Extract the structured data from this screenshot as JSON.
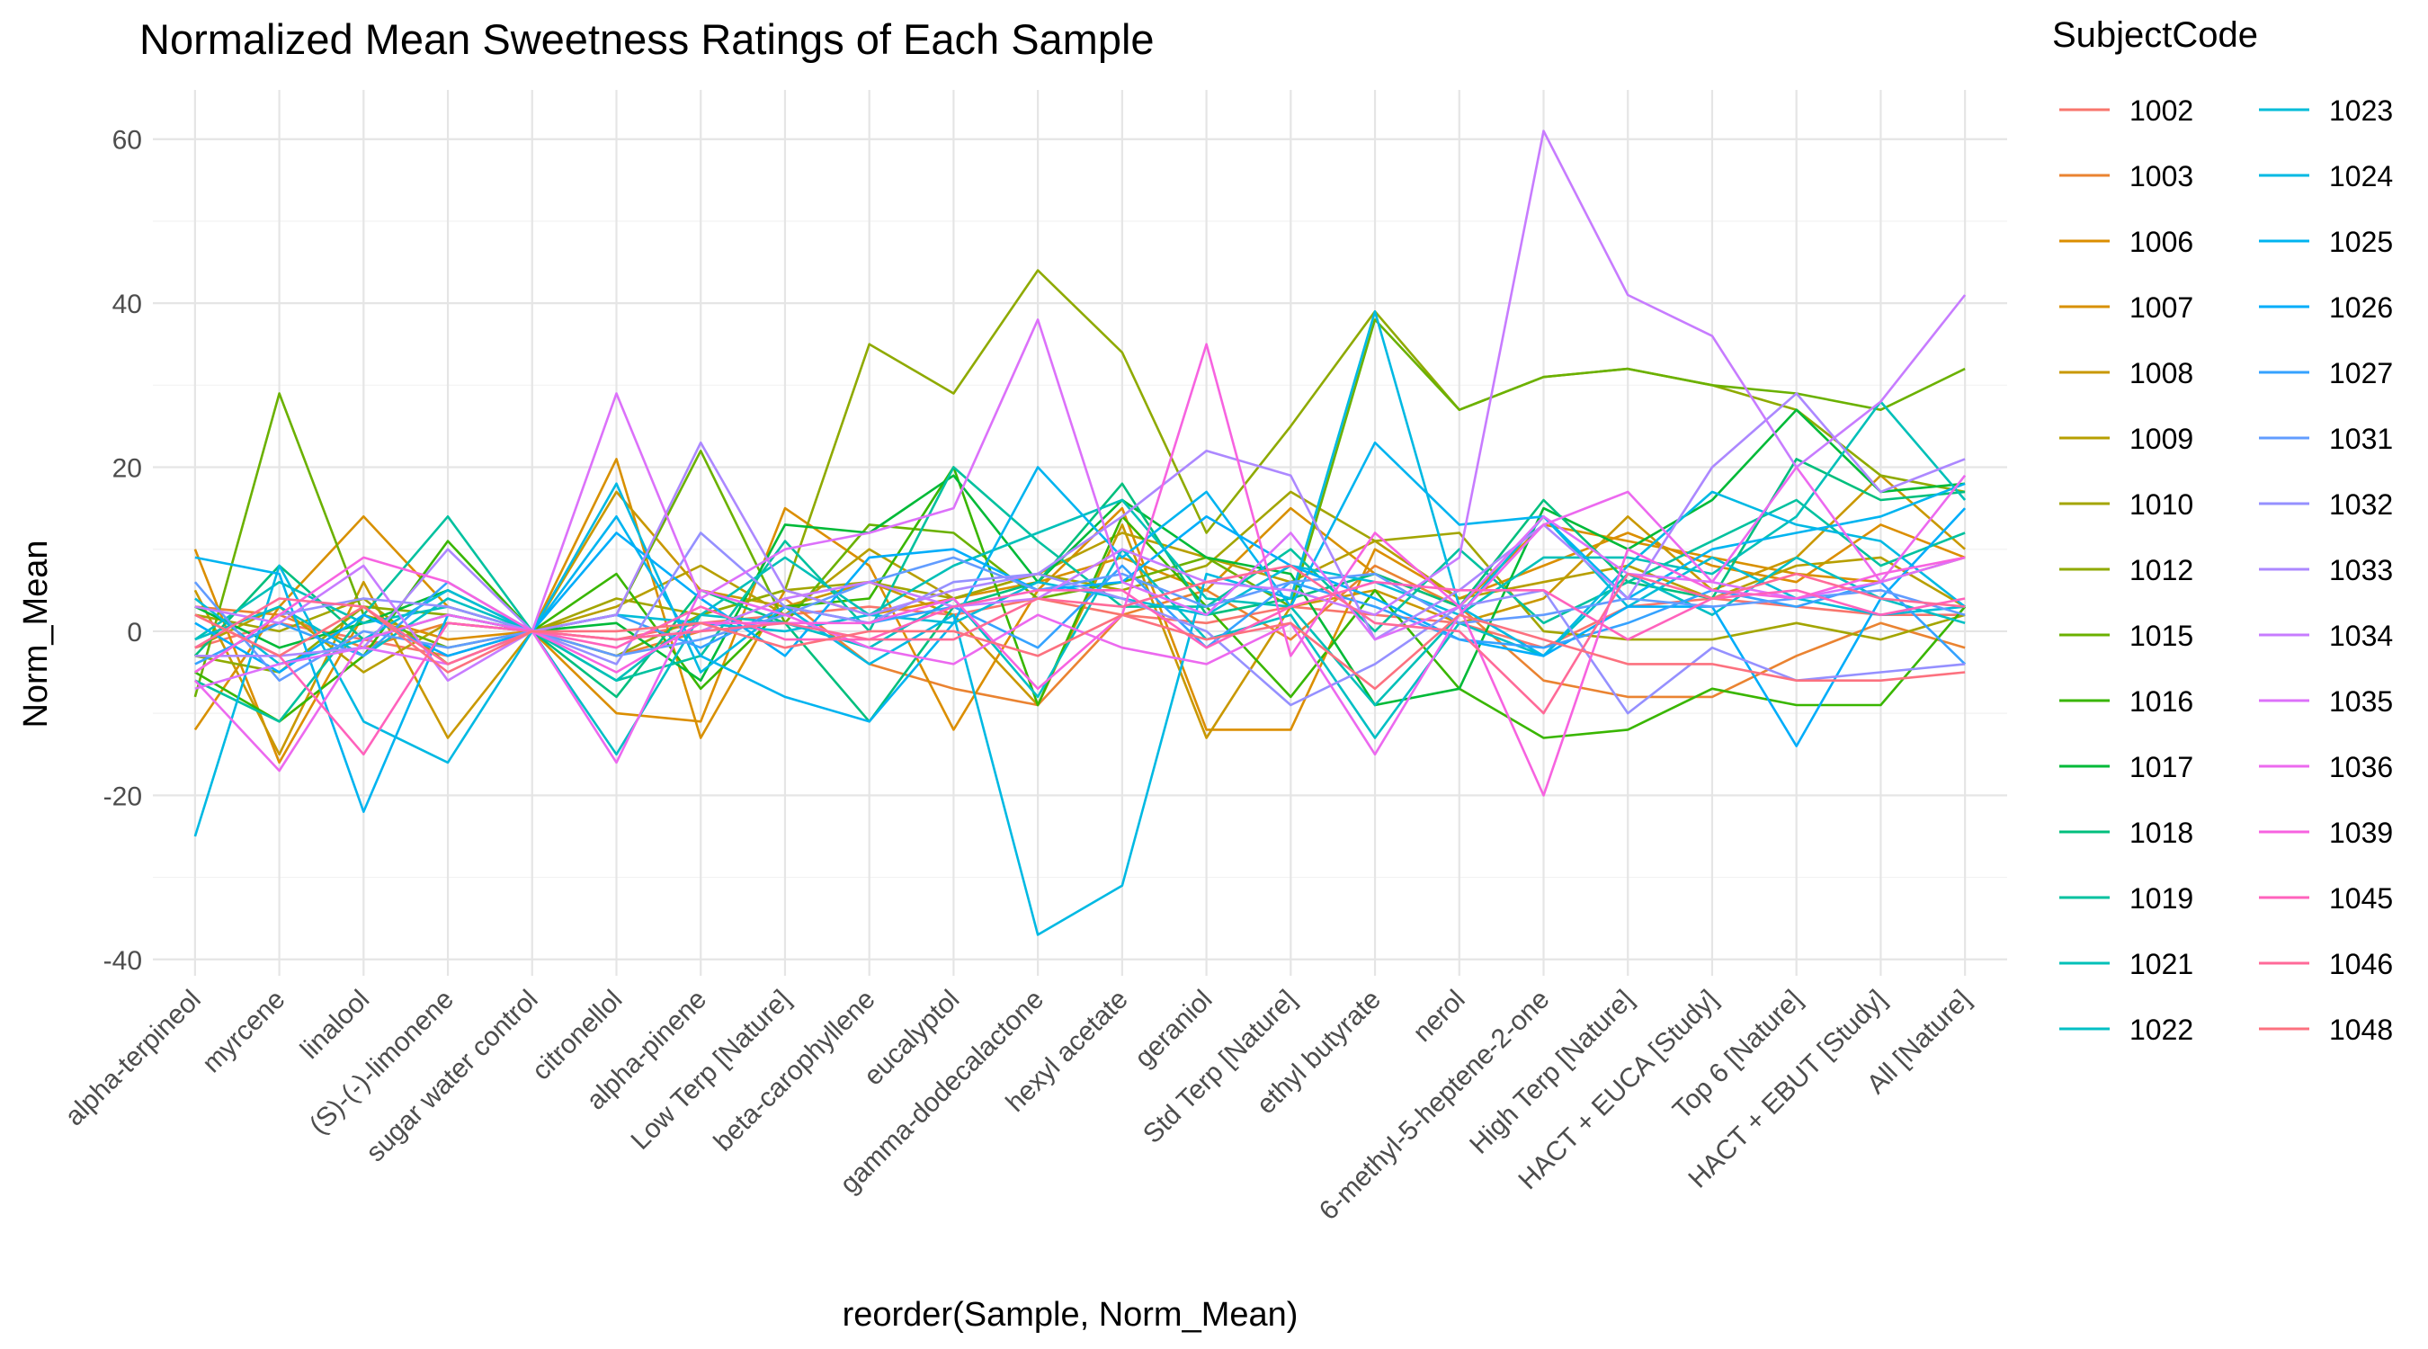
{
  "chart_data": {
    "type": "line",
    "title": "Normalized Mean Sweetness Ratings of Each Sample",
    "xlabel": "reorder(Sample, Norm_Mean)",
    "ylabel": "Norm_Mean",
    "ylim": [
      -42,
      66
    ],
    "yticks": [
      -40,
      -20,
      0,
      20,
      40,
      60
    ],
    "grid": true,
    "legend": {
      "title": "SubjectCode",
      "placement": "right",
      "columns": 2
    },
    "categories": [
      "alpha-terpineol",
      "myrcene",
      "linalool",
      "(S)-(-)-limonene",
      "sugar water control",
      "citronellol",
      "alpha-pinene",
      "Low Terp [Nature]",
      "beta-carophyllene",
      "eucalyptol",
      "gamma-dodecalactone",
      "hexyl acetate",
      "geraniol",
      "Std Terp [Nature]",
      "ethyl butyrate",
      "nerol",
      "6-methyl-5-heptene-2-one",
      "High Terp [Nature]",
      "HACT + EUCA [Study]",
      "Top 6 [Nature]",
      "HACT + EBUT [Study]",
      "All [Nature]"
    ],
    "series": [
      {
        "name": "1002",
        "color": "#F8766D",
        "values": [
          -2,
          1,
          -1,
          -3,
          0,
          -1,
          1,
          2,
          3,
          2,
          4,
          2,
          1,
          3,
          2,
          1,
          -2,
          3,
          4,
          3,
          2,
          2
        ]
      },
      {
        "name": "1003",
        "color": "#EA8331",
        "values": [
          3,
          2,
          -2,
          1,
          0,
          -3,
          0,
          4,
          -4,
          -7,
          -9,
          2,
          5,
          -1,
          8,
          3,
          -6,
          -8,
          -8,
          -3,
          1,
          -2
        ]
      },
      {
        "name": "1006",
        "color": "#DB8E00",
        "values": [
          10,
          -16,
          2,
          -1,
          0,
          -10,
          -11,
          15,
          8,
          -12,
          5,
          15,
          -12,
          -12,
          10,
          4,
          8,
          12,
          8,
          6,
          13,
          9
        ]
      },
      {
        "name": "1007",
        "color": "#D89000",
        "values": [
          -12,
          3,
          14,
          3,
          0,
          21,
          -13,
          5,
          2,
          4,
          6,
          9,
          5,
          15,
          7,
          3,
          13,
          11,
          9,
          7,
          6,
          9
        ]
      },
      {
        "name": "1008",
        "color": "#C99800",
        "values": [
          5,
          -15,
          6,
          -13,
          0,
          17,
          5,
          3,
          6,
          2,
          -9,
          13,
          -13,
          3,
          5,
          1,
          4,
          14,
          5,
          9,
          19,
          10
        ]
      },
      {
        "name": "1009",
        "color": "#B79F00",
        "values": [
          -2,
          3,
          -5,
          1,
          0,
          3,
          8,
          2,
          10,
          4,
          7,
          12,
          9,
          6,
          11,
          4,
          6,
          8,
          4,
          8,
          9,
          3
        ]
      },
      {
        "name": "1010",
        "color": "#A3A500",
        "values": [
          2,
          0,
          4,
          -4,
          0,
          4,
          2,
          5,
          6,
          4,
          7,
          5,
          8,
          17,
          11,
          12,
          0,
          -1,
          -1,
          1,
          -1,
          2
        ]
      },
      {
        "name": "1012",
        "color": "#8FAA00",
        "values": [
          -3,
          -5,
          3,
          2,
          0,
          -3,
          2,
          5,
          35,
          29,
          44,
          34,
          12,
          25,
          39,
          27,
          31,
          32,
          30,
          27,
          19,
          17
        ]
      },
      {
        "name": "1015",
        "color": "#6BB100",
        "values": [
          -8,
          29,
          2,
          -2,
          0,
          2,
          22,
          1,
          13,
          12,
          4,
          6,
          9,
          3,
          38,
          27,
          31,
          32,
          30,
          29,
          27,
          32
        ]
      },
      {
        "name": "1016",
        "color": "#39B600",
        "values": [
          -5,
          -11,
          -3,
          11,
          0,
          7,
          -7,
          3,
          4,
          20,
          -9,
          14,
          3,
          -8,
          5,
          -7,
          -13,
          -12,
          -7,
          -9,
          -9,
          3
        ]
      },
      {
        "name": "1017",
        "color": "#00BA38",
        "values": [
          3,
          -2,
          1,
          5,
          0,
          1,
          -6,
          13,
          12,
          19,
          6,
          16,
          9,
          7,
          -9,
          -7,
          15,
          10,
          16,
          27,
          17,
          18
        ]
      },
      {
        "name": "1018",
        "color": "#00BF7D",
        "values": [
          -3,
          8,
          -1,
          2,
          0,
          -8,
          5,
          1,
          -11,
          3,
          6,
          18,
          2,
          4,
          7,
          3,
          16,
          6,
          4,
          21,
          16,
          17
        ]
      },
      {
        "name": "1019",
        "color": "#00C19F",
        "values": [
          -6,
          -11,
          2,
          14,
          0,
          -6,
          -3,
          11,
          0,
          20,
          11,
          3,
          3,
          10,
          0,
          10,
          1,
          6,
          11,
          16,
          8,
          12
        ]
      },
      {
        "name": "1021",
        "color": "#00C0B8",
        "values": [
          -1,
          6,
          1,
          3,
          0,
          -6,
          2,
          9,
          2,
          8,
          12,
          16,
          4,
          3,
          -9,
          2,
          9,
          9,
          7,
          14,
          28,
          16
        ]
      },
      {
        "name": "1022",
        "color": "#00BFC4",
        "values": [
          -1,
          3,
          -3,
          4,
          0,
          -15,
          2,
          1,
          -2,
          4,
          -8,
          10,
          -1,
          2,
          -13,
          1,
          -3,
          7,
          2,
          9,
          4,
          1
        ]
      },
      {
        "name": "1023",
        "color": "#00BCD8",
        "values": [
          4,
          -4,
          -1,
          5,
          0,
          2,
          1,
          0,
          2,
          1,
          6,
          4,
          2,
          8,
          6,
          2,
          14,
          3,
          9,
          4,
          2,
          3
        ]
      },
      {
        "name": "1024",
        "color": "#00B9E3",
        "values": [
          -25,
          8,
          -11,
          -16,
          0,
          18,
          -5,
          3,
          -4,
          2,
          -37,
          -31,
          7,
          4,
          39,
          3,
          -3,
          8,
          17,
          13,
          11,
          3
        ]
      },
      {
        "name": "1025",
        "color": "#00B4F0",
        "values": [
          9,
          7,
          -22,
          2,
          0,
          14,
          -3,
          -8,
          -11,
          1,
          20,
          9,
          17,
          3,
          23,
          13,
          14,
          4,
          10,
          12,
          14,
          18
        ]
      },
      {
        "name": "1026",
        "color": "#00ADFA",
        "values": [
          1,
          -5,
          2,
          -3,
          0,
          12,
          4,
          -3,
          9,
          10,
          5,
          6,
          14,
          8,
          4,
          -1,
          -3,
          3,
          3,
          -14,
          4,
          15
        ]
      },
      {
        "name": "1027",
        "color": "#35A2FF",
        "values": [
          -4,
          1,
          -3,
          6,
          0,
          2,
          -2,
          3,
          1,
          3,
          -2,
          8,
          -2,
          6,
          3,
          -1,
          -2,
          1,
          5,
          3,
          6,
          -4
        ]
      },
      {
        "name": "1031",
        "color": "#619CFF",
        "values": [
          6,
          -6,
          0,
          -2,
          0,
          -3,
          -1,
          2,
          6,
          9,
          5,
          7,
          3,
          6,
          7,
          1,
          2,
          4,
          3,
          4,
          5,
          2
        ]
      },
      {
        "name": "1032",
        "color": "#9590FF",
        "values": [
          -5,
          2,
          4,
          3,
          0,
          -4,
          12,
          3,
          1,
          6,
          7,
          4,
          0,
          -9,
          -4,
          3,
          5,
          -10,
          -2,
          -6,
          -5,
          -4
        ]
      },
      {
        "name": "1033",
        "color": "#AC88FF",
        "values": [
          -3,
          -3,
          -2,
          10,
          0,
          2,
          23,
          5,
          2,
          5,
          7,
          14,
          22,
          19,
          -1,
          5,
          13,
          4,
          20,
          29,
          17,
          21
        ]
      },
      {
        "name": "1034",
        "color": "#C77CFF",
        "values": [
          3,
          1,
          8,
          -6,
          0,
          -1,
          0,
          4,
          6,
          3,
          4,
          10,
          6,
          5,
          2,
          9,
          61,
          41,
          36,
          20,
          28,
          41
        ]
      },
      {
        "name": "1035",
        "color": "#DC71FA",
        "values": [
          -7,
          -4,
          -2,
          -4,
          0,
          29,
          4,
          10,
          12,
          15,
          38,
          6,
          2,
          12,
          -1,
          3,
          14,
          7,
          6,
          4,
          6,
          9
        ]
      },
      {
        "name": "1036",
        "color": "#EC69EF",
        "values": [
          -6,
          -17,
          -1,
          2,
          0,
          -16,
          5,
          2,
          -2,
          -4,
          2,
          -2,
          -4,
          1,
          -15,
          2,
          13,
          17,
          6,
          20,
          6,
          19
        ]
      },
      {
        "name": "1039",
        "color": "#F763E0",
        "values": [
          -5,
          2,
          9,
          6,
          0,
          -5,
          1,
          1,
          1,
          4,
          -7,
          2,
          35,
          -3,
          12,
          3,
          -20,
          10,
          5,
          4,
          7,
          9
        ]
      },
      {
        "name": "1045",
        "color": "#FF62BC",
        "values": [
          2,
          -3,
          -15,
          1,
          0,
          -2,
          3,
          -1,
          -1,
          3,
          5,
          5,
          -2,
          3,
          6,
          5,
          5,
          -1,
          4,
          5,
          2,
          4
        ]
      },
      {
        "name": "1046",
        "color": "#FF6A98",
        "values": [
          -2,
          4,
          3,
          -4,
          0,
          -1,
          0,
          1,
          -1,
          -1,
          4,
          3,
          6,
          8,
          1,
          0,
          -10,
          7,
          4,
          7,
          4,
          3
        ]
      },
      {
        "name": "1048",
        "color": "#FC717F",
        "values": [
          2,
          -3,
          3,
          -5,
          0,
          0,
          1,
          -2,
          0,
          0,
          -3,
          2,
          -1,
          1,
          -7,
          2,
          -1,
          -4,
          -4,
          -6,
          -6,
          -5
        ]
      }
    ]
  }
}
